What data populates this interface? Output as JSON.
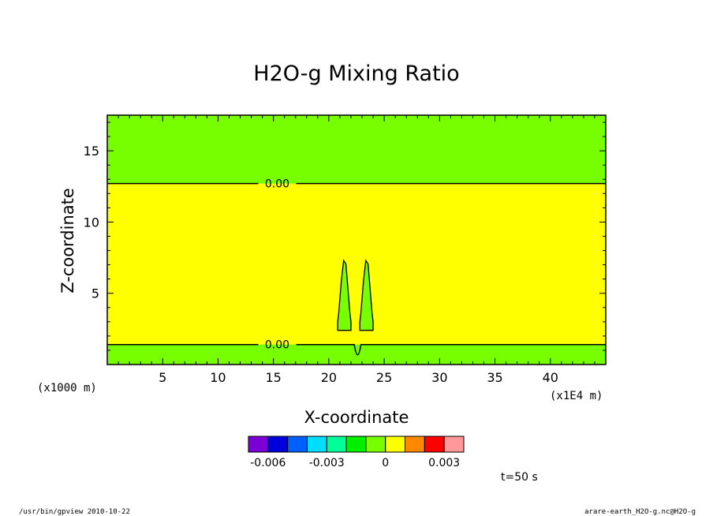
{
  "chart_data": {
    "type": "heatmap",
    "title": "H2O-g Mixing Ratio",
    "xlabel": "X-coordinate",
    "ylabel": "Z-coordinate",
    "x_unit_note": "(x1E4 m)",
    "y_unit_note": "(x1000 m)",
    "xlim": [
      0,
      45
    ],
    "ylim": [
      0,
      17.5
    ],
    "x_ticks": [
      5,
      10,
      15,
      20,
      25,
      30,
      35,
      40
    ],
    "x_tick_labels": [
      "5",
      "10",
      "15",
      "20",
      "25",
      "30",
      "35",
      "40"
    ],
    "y_ticks": [
      5,
      10,
      15
    ],
    "y_tick_labels": [
      "5",
      "10",
      "15"
    ],
    "background_value_color": "#ffff00",
    "fill_regions": [
      {
        "label": "upper layer",
        "color": "#77ff00",
        "z_range": [
          12.7,
          17.5
        ]
      },
      {
        "label": "lower layer",
        "color": "#77ff00",
        "z_range": [
          0,
          1.4
        ]
      },
      {
        "label": "left plume",
        "color": "#77ff00",
        "x_range": [
          20.8,
          22.0
        ],
        "z_range": [
          2.4,
          7.3
        ]
      },
      {
        "label": "right plume",
        "color": "#77ff00",
        "x_range": [
          22.8,
          24.0
        ],
        "z_range": [
          2.4,
          7.3
        ]
      }
    ],
    "contours": [
      {
        "value": 0.0,
        "z": 12.7,
        "label": "0.00"
      },
      {
        "value": 0.0,
        "z": 1.4,
        "label": "0.00"
      }
    ],
    "colorbar": {
      "colors": [
        "#7a00d6",
        "#0000dd",
        "#0060ff",
        "#00ddff",
        "#00ff99",
        "#00ee00",
        "#77ff00",
        "#ffff00",
        "#ff8800",
        "#ff0000",
        "#ff9999"
      ],
      "tick_labels": [
        "-0.006",
        "-0.003",
        "0",
        "0.003"
      ]
    }
  },
  "annotations": {
    "time": "t=50 s",
    "footer_left": "/usr/bin/gpview  2010-10-22",
    "footer_right": "arare-earth_H2O-g.nc@H2O-g"
  }
}
